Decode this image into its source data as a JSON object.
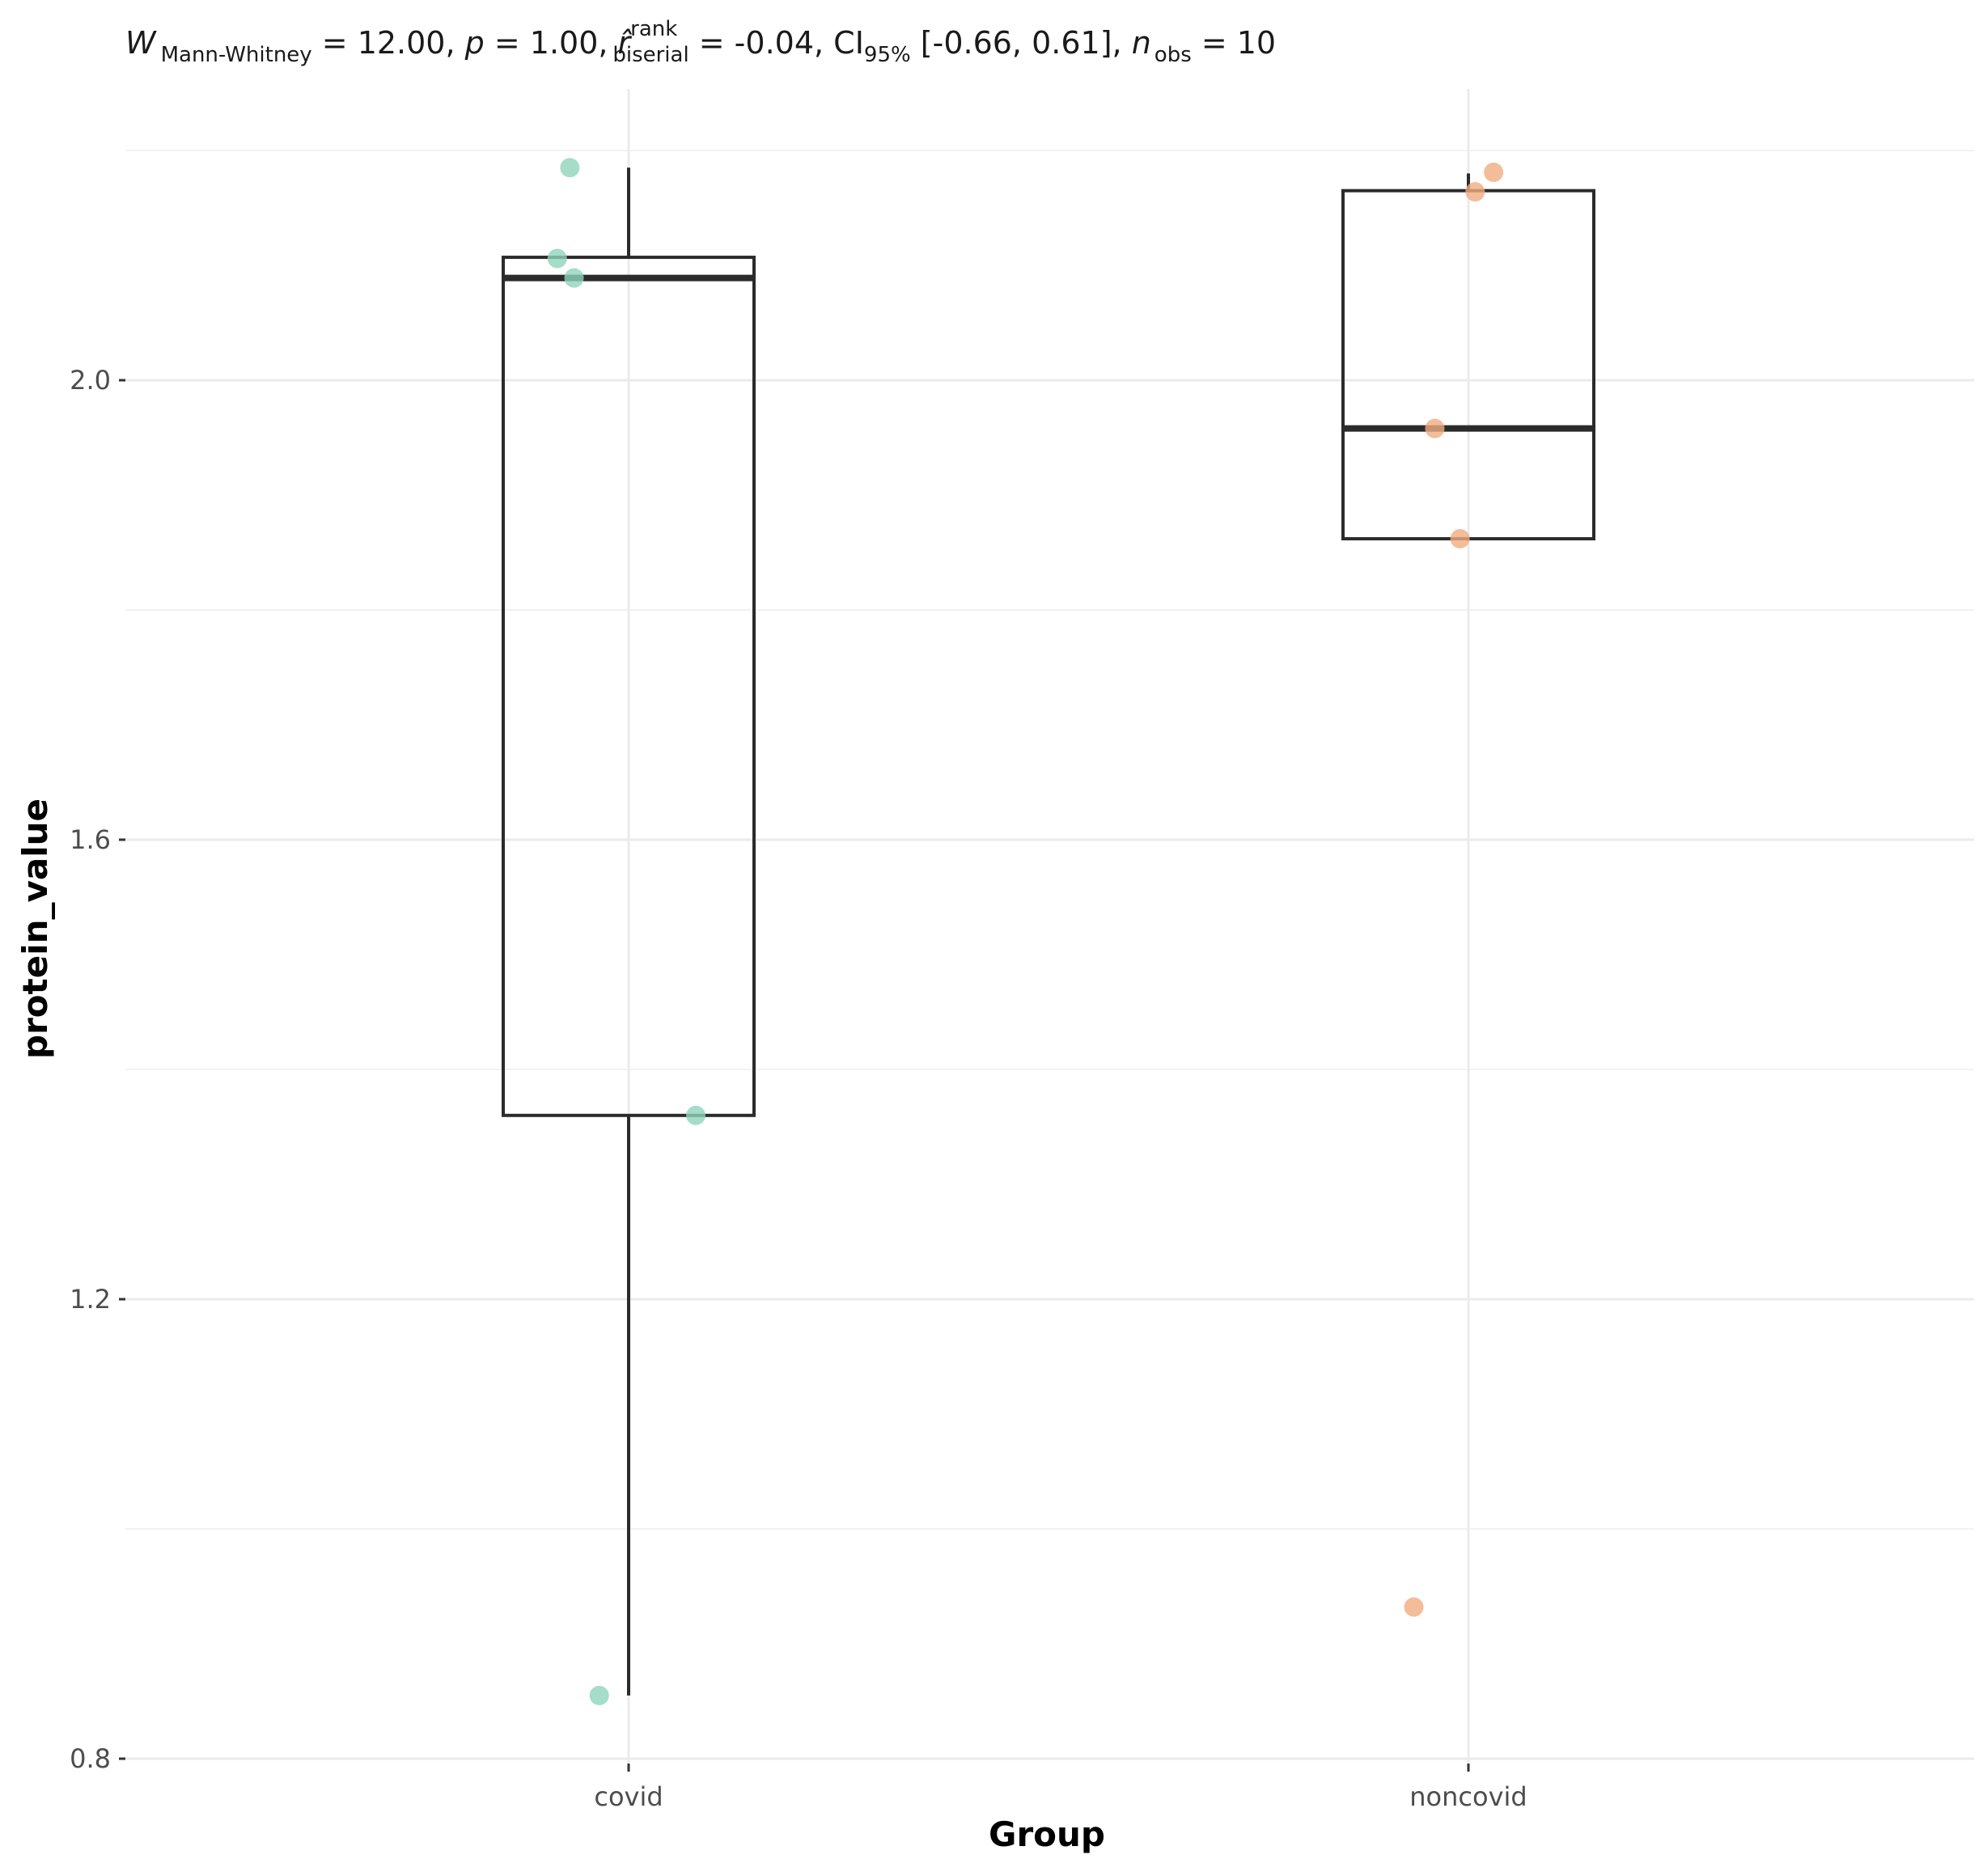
{
  "chart_data": {
    "type": "box",
    "subtitle": {
      "W": "W",
      "W_sub": "Mann-Whitney",
      "W_value": " = 12.00, ",
      "p": "p",
      "p_value": " = 1.00, ",
      "r": "r̂",
      "r_sup": "rank",
      "r_sub": "biserial",
      "r_value": " = -0.04, CI",
      "ci_sub": "95%",
      "ci_value": " [-0.66, 0.61], ",
      "n": "n",
      "n_sub": "obs",
      "n_value": " = 10"
    },
    "xlabel": "Group",
    "ylabel": "protein_value",
    "categories": [
      "covid",
      "noncovid"
    ],
    "ylim": [
      0.78,
      2.23
    ],
    "yticks": [
      0.8,
      1.2,
      1.6,
      2.0
    ],
    "ytick_labels": [
      "0.8",
      "1.2",
      "1.6",
      "2.0"
    ],
    "grid": true,
    "colors": {
      "covid": "#8fd4bc",
      "noncovid": "#f0ad80",
      "box": "#2b2b2b",
      "grid_major": "#ebebeb",
      "grid_minor": "#f2f2f2"
    },
    "boxes": [
      {
        "group": "covid",
        "whisker_low": 0.855,
        "q1": 1.36,
        "median": 2.089,
        "q3": 2.107,
        "whisker_high": 2.185
      },
      {
        "group": "noncovid",
        "whisker_low": 1.862,
        "q1": 1.862,
        "median": 1.958,
        "q3": 2.165,
        "whisker_high": 2.18
      }
    ],
    "points": [
      {
        "group": "covid",
        "offset": -0.07,
        "y": 2.185
      },
      {
        "group": "covid",
        "offset": -0.085,
        "y": 2.106
      },
      {
        "group": "covid",
        "offset": -0.065,
        "y": 2.089
      },
      {
        "group": "covid",
        "offset": 0.08,
        "y": 1.36
      },
      {
        "group": "covid",
        "offset": -0.035,
        "y": 0.855
      },
      {
        "group": "noncovid",
        "offset": 0.03,
        "y": 2.181
      },
      {
        "group": "noncovid",
        "offset": 0.008,
        "y": 2.164
      },
      {
        "group": "noncovid",
        "offset": -0.04,
        "y": 1.958
      },
      {
        "group": "noncovid",
        "offset": -0.01,
        "y": 1.862
      },
      {
        "group": "noncovid",
        "offset": -0.065,
        "y": 0.932
      }
    ]
  }
}
